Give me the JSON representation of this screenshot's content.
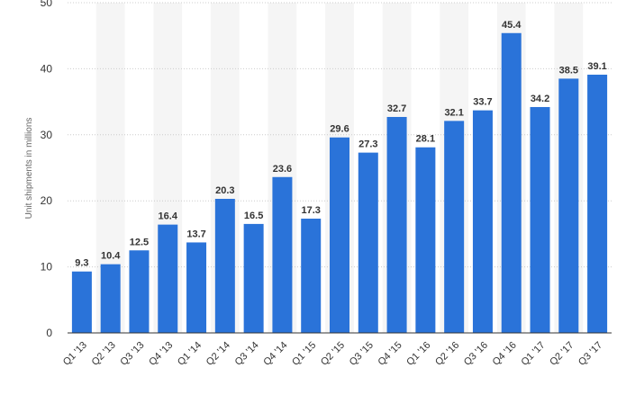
{
  "chart_data": {
    "type": "bar",
    "title": "",
    "xlabel": "",
    "ylabel": "Unit shipments in millions",
    "ylim": [
      0,
      50
    ],
    "yticks": [
      0,
      10,
      20,
      30,
      40,
      50
    ],
    "grid": true,
    "categories": [
      "Q1 '13",
      "Q2 '13",
      "Q3 '13",
      "Q4 '13",
      "Q1 '14",
      "Q2 '14",
      "Q3 '14",
      "Q4 '14",
      "Q1 '15",
      "Q2 '15",
      "Q3 '15",
      "Q4 '15",
      "Q1 '16",
      "Q2 '16",
      "Q3 '16",
      "Q4 '16",
      "Q1 '17",
      "Q2 '17",
      "Q3 '17"
    ],
    "values": [
      9.3,
      10.4,
      12.5,
      16.4,
      13.7,
      20.3,
      16.5,
      23.6,
      17.3,
      29.6,
      27.3,
      32.7,
      28.1,
      32.1,
      33.7,
      45.4,
      34.2,
      38.5,
      39.1
    ],
    "value_labels": [
      "9.3",
      "10.4",
      "12.5",
      "16.4",
      "13.7",
      "20.3",
      "16.5",
      "23.6",
      "17.3",
      "29.6",
      "27.3",
      "32.7",
      "28.1",
      "32.1",
      "33.7",
      "45.4",
      "34.2",
      "38.5",
      "39.1"
    ],
    "colors": {
      "bar": "#2a73d9",
      "band": "#f5f5f5",
      "grid": "#cccccc",
      "axis": "#333333",
      "text": "#333333"
    }
  }
}
